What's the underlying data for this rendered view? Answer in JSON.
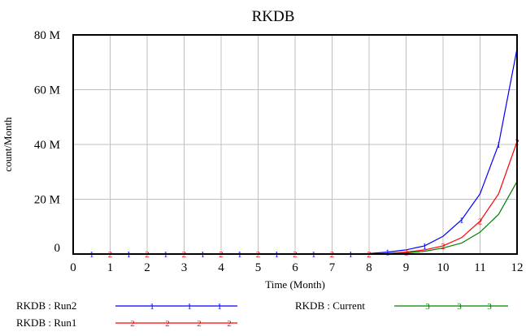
{
  "chart_data": {
    "type": "line",
    "title": "RKDB",
    "xlabel": "Time (Month)",
    "ylabel": "count/Month",
    "xlim": [
      0,
      12
    ],
    "ylim": [
      0,
      80000000
    ],
    "x_ticks": [
      "0",
      "1",
      "2",
      "3",
      "4",
      "5",
      "6",
      "7",
      "8",
      "9",
      "10",
      "11",
      "12"
    ],
    "y_ticks": [
      "0",
      "20 M",
      "40 M",
      "60 M",
      "80 M"
    ],
    "grid": true,
    "legend_placement": "bottom",
    "x": [
      0,
      0.5,
      1,
      1.5,
      2,
      2.5,
      3,
      3.5,
      4,
      4.5,
      5,
      5.5,
      6,
      6.5,
      7,
      7.5,
      8,
      8.5,
      9,
      9.5,
      10,
      10.5,
      11,
      11.5,
      12
    ],
    "series": [
      {
        "name": "RKDB : Run2",
        "marker": "1",
        "color": "#0000ff",
        "values": [
          0,
          0,
          0,
          0,
          0,
          0,
          0,
          0,
          0,
          0,
          0,
          0,
          0,
          0,
          0,
          50000,
          200000,
          700000,
          1500000,
          3000000,
          6500000,
          12500000,
          22000000,
          40000000,
          75000000
        ]
      },
      {
        "name": "RKDB : Run1",
        "marker": "2",
        "color": "#ff0000",
        "values": [
          0,
          0,
          0,
          0,
          0,
          0,
          0,
          0,
          0,
          0,
          0,
          0,
          0,
          0,
          0,
          0,
          50000,
          250000,
          700000,
          1500000,
          3000000,
          6000000,
          12000000,
          22000000,
          41000000
        ]
      },
      {
        "name": "RKDB : Current",
        "marker": "3",
        "color": "#008000",
        "values": [
          0,
          0,
          0,
          0,
          0,
          0,
          0,
          0,
          0,
          0,
          0,
          0,
          0,
          0,
          0,
          0,
          0,
          100000,
          400000,
          1000000,
          2200000,
          4000000,
          8000000,
          14500000,
          26500000
        ]
      }
    ]
  }
}
